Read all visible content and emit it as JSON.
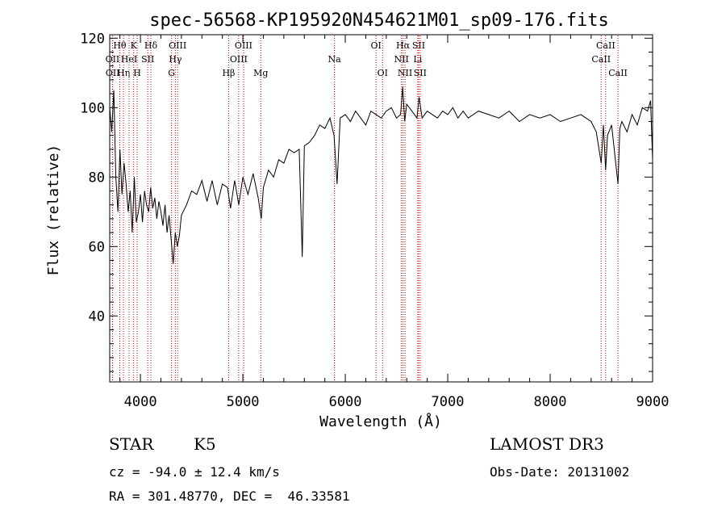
{
  "chart_data": {
    "type": "line",
    "title": "spec-56568-KP195920N454621M01_sp09-176.fits",
    "xlabel": "Wavelength (Å)",
    "ylabel": "Flux (relative)",
    "xlim": [
      3700,
      9000
    ],
    "ylim": [
      21,
      121
    ],
    "x_ticks": [
      4000,
      5000,
      6000,
      7000,
      8000,
      9000
    ],
    "y_ticks": [
      40,
      60,
      80,
      100,
      120
    ],
    "grid": false,
    "series": [
      {
        "name": "flux",
        "x": [
          3700,
          3720,
          3740,
          3760,
          3780,
          3800,
          3820,
          3840,
          3860,
          3880,
          3900,
          3920,
          3940,
          3960,
          3980,
          4000,
          4020,
          4040,
          4060,
          4080,
          4100,
          4120,
          4140,
          4160,
          4180,
          4200,
          4220,
          4240,
          4260,
          4280,
          4300,
          4320,
          4340,
          4360,
          4380,
          4400,
          4450,
          4500,
          4550,
          4600,
          4650,
          4700,
          4750,
          4800,
          4850,
          4880,
          4920,
          4960,
          5000,
          5050,
          5100,
          5150,
          5180,
          5200,
          5250,
          5300,
          5350,
          5400,
          5450,
          5500,
          5550,
          5580,
          5600,
          5650,
          5700,
          5750,
          5800,
          5850,
          5890,
          5920,
          5950,
          6000,
          6050,
          6100,
          6150,
          6200,
          6250,
          6300,
          6350,
          6400,
          6450,
          6500,
          6540,
          6560,
          6580,
          6600,
          6650,
          6700,
          6720,
          6750,
          6800,
          6850,
          6900,
          6950,
          7000,
          7050,
          7100,
          7150,
          7200,
          7300,
          7400,
          7500,
          7600,
          7700,
          7800,
          7900,
          8000,
          8100,
          8200,
          8300,
          8400,
          8450,
          8498,
          8520,
          8542,
          8560,
          8600,
          8662,
          8680,
          8700,
          8750,
          8800,
          8850,
          8900,
          8950,
          8980,
          9000
        ],
        "values": [
          100,
          93,
          105,
          80,
          70,
          88,
          75,
          84,
          78,
          70,
          76,
          64,
          80,
          67,
          70,
          75,
          67,
          76,
          72,
          70,
          77,
          71,
          74,
          68,
          73,
          70,
          66,
          72,
          64,
          69,
          62,
          55,
          64,
          60,
          63,
          69,
          72,
          76,
          75,
          79,
          73,
          79,
          72,
          78,
          77,
          71,
          79,
          72,
          80,
          75,
          81,
          74,
          68,
          77,
          82,
          80,
          85,
          84,
          88,
          87,
          88,
          57,
          89,
          90,
          92,
          95,
          94,
          97,
          92,
          78,
          97,
          98,
          96,
          99,
          97,
          95,
          99,
          98,
          97,
          99,
          100,
          97,
          98,
          106,
          96,
          101,
          99,
          97,
          103,
          97,
          99,
          98,
          97,
          99,
          98,
          100,
          97,
          99,
          97,
          99,
          98,
          97,
          99,
          96,
          98,
          97,
          98,
          96,
          97,
          98,
          96,
          93,
          84,
          95,
          82,
          92,
          95,
          78,
          94,
          96,
          93,
          98,
          95,
          100,
          99,
          102,
          85
        ]
      }
    ],
    "spectral_lines": [
      {
        "label": "OII",
        "wavelength": 3727,
        "row": 2
      },
      {
        "label": "OII",
        "wavelength": 3729,
        "row": 3
      },
      {
        "label": "Hθ",
        "wavelength": 3798,
        "row": 1
      },
      {
        "label": "Hη",
        "wavelength": 3835,
        "row": 3
      },
      {
        "label": "HeI",
        "wavelength": 3889,
        "row": 2
      },
      {
        "label": "K",
        "wavelength": 3934,
        "row": 1
      },
      {
        "label": "H",
        "wavelength": 3968,
        "row": 3
      },
      {
        "label": "SII",
        "wavelength": 4072,
        "row": 2
      },
      {
        "label": "Hδ",
        "wavelength": 4102,
        "row": 1
      },
      {
        "label": "G",
        "wavelength": 4304,
        "row": 3
      },
      {
        "label": "Hγ",
        "wavelength": 4341,
        "row": 2
      },
      {
        "label": "OIII",
        "wavelength": 4363,
        "row": 1
      },
      {
        "label": "Hβ",
        "wavelength": 4861,
        "row": 3
      },
      {
        "label": "OIII",
        "wavelength": 4959,
        "row": 2
      },
      {
        "label": "OIII",
        "wavelength": 5007,
        "row": 1
      },
      {
        "label": "Mg",
        "wavelength": 5175,
        "row": 3
      },
      {
        "label": "Na",
        "wavelength": 5894,
        "row": 2
      },
      {
        "label": "OI",
        "wavelength": 6300,
        "row": 1
      },
      {
        "label": "OI",
        "wavelength": 6364,
        "row": 3
      },
      {
        "label": "NII",
        "wavelength": 6548,
        "row": 2
      },
      {
        "label": "Hα",
        "wavelength": 6563,
        "row": 1
      },
      {
        "label": "NII",
        "wavelength": 6583,
        "row": 3
      },
      {
        "label": "Li",
        "wavelength": 6707,
        "row": 2
      },
      {
        "label": "SII",
        "wavelength": 6716,
        "row": 1
      },
      {
        "label": "SII",
        "wavelength": 6731,
        "row": 3
      },
      {
        "label": "CaII",
        "wavelength": 8498,
        "row": 2
      },
      {
        "label": "CaII",
        "wavelength": 8542,
        "row": 1
      },
      {
        "label": "CaII",
        "wavelength": 8662,
        "row": 3
      }
    ],
    "colors": {
      "axis": "#000000",
      "line": "#000000",
      "marker_line": "#cc0000",
      "background": "#ffffff"
    }
  },
  "info": {
    "class": "STAR",
    "subclass": "K5",
    "survey": "LAMOST DR3",
    "cz": "cz = -94.0 ± 12.4 km/s",
    "obs_date": "Obs-Date: 20131002",
    "coords": "RA = 301.48770, DEC =  46.33581"
  }
}
